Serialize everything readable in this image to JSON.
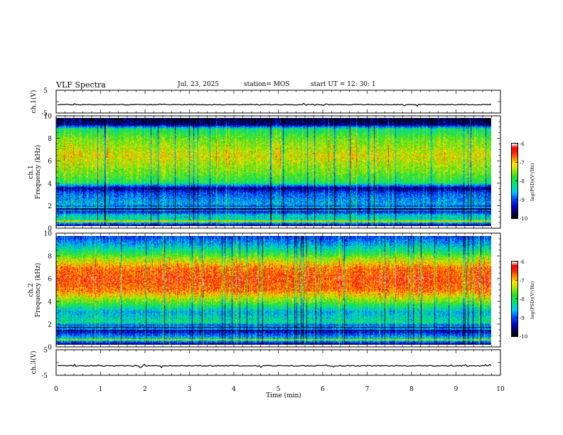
{
  "header": {
    "title": "VLF Spectra",
    "date": "Jul. 23, 2025",
    "station": "station= MOS",
    "start_ut": "start  UT =   12: 30: 1"
  },
  "chart_data": [
    {
      "type": "line",
      "name": "ch.1 waveform",
      "ylabel": "ch.1(V)",
      "yticks": [
        "5",
        "-5"
      ],
      "ylim": [
        -5,
        5
      ],
      "xlim": [
        0,
        10
      ],
      "trace_level_V": -1.3
    },
    {
      "type": "heatmap",
      "name": "ch.1 spectrogram",
      "ylabel": "ch.1 Frequency (kHz)",
      "ylabel_line1": "ch.1",
      "ylabel_line2": "Frequency (kHz)",
      "yticks": [
        "0",
        "2",
        "4",
        "6",
        "8",
        "10"
      ],
      "ylim": [
        0,
        10
      ],
      "xlim": [
        0,
        10
      ],
      "colorbar": {
        "label": "log(PSD)(V²/Hz)",
        "ticks": [
          "-6",
          "-7",
          "-8",
          "-9",
          "-10"
        ],
        "range": [
          -10,
          -6
        ]
      },
      "band_profile_khz_vs_log": [
        [
          0.0,
          -9.6
        ],
        [
          0.4,
          -8.2
        ],
        [
          1.0,
          -8.5
        ],
        [
          1.5,
          -9.9
        ],
        [
          2.0,
          -8.6
        ],
        [
          3.0,
          -9.0
        ],
        [
          3.5,
          -9.6
        ],
        [
          4.0,
          -8.0
        ],
        [
          5.0,
          -7.6
        ],
        [
          6.5,
          -7.2
        ],
        [
          8.0,
          -7.6
        ],
        [
          9.0,
          -8.1
        ],
        [
          9.4,
          -9.6
        ],
        [
          10.0,
          -9.9
        ]
      ]
    },
    {
      "type": "heatmap",
      "name": "ch.2 spectrogram",
      "ylabel": "ch.2 Frequency (kHz)",
      "ylabel_line1": "ch.2",
      "ylabel_line2": "Frequency (kHz)",
      "yticks": [
        "0",
        "2",
        "4",
        "6",
        "8",
        "10"
      ],
      "ylim": [
        0,
        10
      ],
      "xlim": [
        0,
        10
      ],
      "colorbar": {
        "label": "log(PSD)(V²/Hz)",
        "ticks": [
          "-6",
          "-7",
          "-8",
          "-9",
          "-10"
        ],
        "range": [
          -10,
          -6
        ]
      },
      "band_profile_khz_vs_log": [
        [
          0.0,
          -9.7
        ],
        [
          0.4,
          -8.3
        ],
        [
          1.2,
          -9.4
        ],
        [
          1.6,
          -9.8
        ],
        [
          2.0,
          -8.2
        ],
        [
          3.0,
          -8.6
        ],
        [
          4.0,
          -7.6
        ],
        [
          5.0,
          -6.7
        ],
        [
          6.0,
          -6.5
        ],
        [
          7.0,
          -6.7
        ],
        [
          7.8,
          -7.3
        ],
        [
          8.5,
          -8.0
        ],
        [
          9.2,
          -8.6
        ],
        [
          10.0,
          -9.1
        ]
      ]
    },
    {
      "type": "line",
      "name": "ch.3 waveform",
      "ylabel": "ch.3(V)",
      "yticks": [
        "5",
        "-5"
      ],
      "ylim": [
        -5,
        5
      ],
      "xlim": [
        0,
        10
      ],
      "trace_level_V": -1.3
    }
  ],
  "xaxis": {
    "label": "Time  (min)",
    "ticks": [
      "0",
      "1",
      "2",
      "3",
      "4",
      "5",
      "6",
      "7",
      "8",
      "9",
      "10"
    ],
    "range": [
      0,
      10
    ]
  }
}
